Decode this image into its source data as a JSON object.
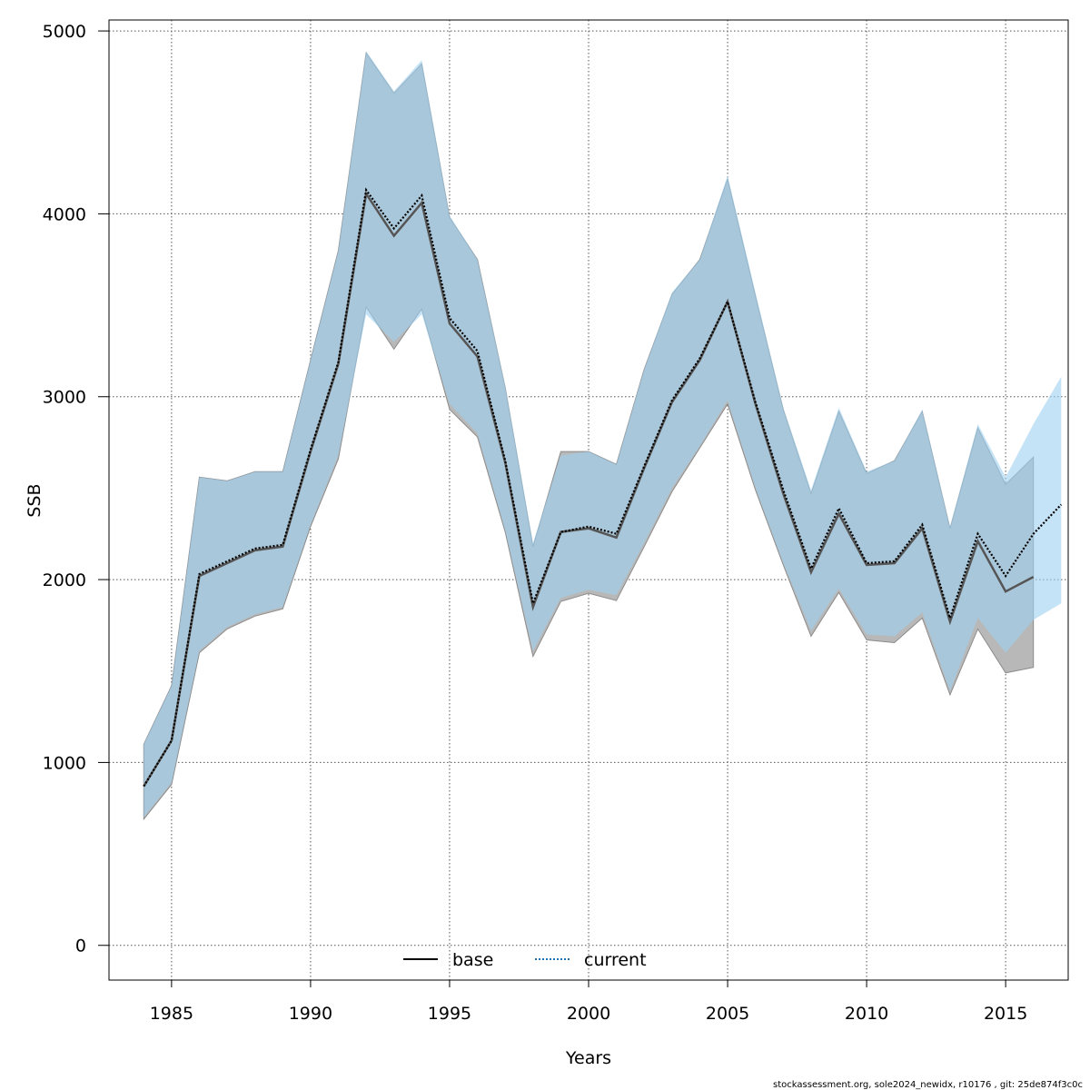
{
  "chart_data": {
    "type": "line",
    "title": "",
    "xlabel": "Years",
    "ylabel": "SSB",
    "xlim": [
      1982.75,
      2017.25
    ],
    "ylim": [
      -190,
      5060
    ],
    "x_ticks": [
      1985,
      1990,
      1995,
      2000,
      2005,
      2010,
      2015
    ],
    "y_ticks": [
      0,
      1000,
      2000,
      3000,
      4000,
      5000
    ],
    "grid": true,
    "legend_position": "bottom-center",
    "colors": {
      "base_band": "#b8b8b8",
      "base_band_edge": "#8c8c8c",
      "current_band": "#9fd0f0",
      "current_band_opacity": 0.6,
      "base_line": "#000000",
      "current_line": "#1f6fa8"
    },
    "series": [
      {
        "name": "base",
        "style": "solid",
        "x": [
          1984,
          1985,
          1986,
          1987,
          1988,
          1989,
          1990,
          1991,
          1992,
          1993,
          1994,
          1995,
          1996,
          1997,
          1998,
          1999,
          2000,
          2001,
          2002,
          2003,
          2004,
          2005,
          2006,
          2007,
          2008,
          2009,
          2010,
          2011,
          2012,
          2013,
          2014,
          2015,
          2016
        ],
        "y": [
          870,
          1120,
          2020,
          2090,
          2160,
          2180,
          2700,
          3180,
          4110,
          3880,
          4060,
          3400,
          3220,
          2640,
          1850,
          2260,
          2280,
          2230,
          2610,
          2970,
          3200,
          3520,
          2960,
          2470,
          2040,
          2360,
          2080,
          2090,
          2280,
          1770,
          2210,
          1935,
          2015
        ],
        "lower": [
          690,
          880,
          1600,
          1730,
          1800,
          1840,
          2290,
          2660,
          3490,
          3260,
          3480,
          2930,
          2780,
          2260,
          1580,
          1880,
          1925,
          1885,
          2180,
          2480,
          2720,
          2960,
          2490,
          2080,
          1690,
          1930,
          1670,
          1655,
          1790,
          1370,
          1730,
          1490,
          1520
        ],
        "upper": [
          1100,
          1420,
          2560,
          2540,
          2590,
          2590,
          3200,
          3800,
          4880,
          4660,
          4820,
          3980,
          3750,
          3050,
          2180,
          2700,
          2700,
          2630,
          3150,
          3560,
          3750,
          4190,
          3550,
          2930,
          2470,
          2920,
          2580,
          2650,
          2920,
          2280,
          2830,
          2520,
          2670
        ]
      },
      {
        "name": "current",
        "style": "dotted",
        "x": [
          1984,
          1985,
          1986,
          1987,
          1988,
          1989,
          1990,
          1991,
          1992,
          1993,
          1994,
          1995,
          1996,
          1997,
          1998,
          1999,
          2000,
          2001,
          2002,
          2003,
          2004,
          2005,
          2006,
          2007,
          2008,
          2009,
          2010,
          2011,
          2012,
          2013,
          2014,
          2015,
          2016,
          2017
        ],
        "y": [
          870,
          1120,
          2030,
          2100,
          2170,
          2190,
          2710,
          3190,
          4130,
          3920,
          4100,
          3430,
          3250,
          2650,
          1870,
          2260,
          2290,
          2250,
          2620,
          2980,
          3210,
          3520,
          2970,
          2490,
          2060,
          2390,
          2090,
          2100,
          2300,
          1790,
          2250,
          2020,
          2250,
          2410
        ],
        "lower": [
          700,
          890,
          1610,
          1740,
          1810,
          1850,
          2300,
          2680,
          3450,
          3300,
          3450,
          2960,
          2800,
          2270,
          1610,
          1900,
          1945,
          1915,
          2200,
          2500,
          2730,
          2980,
          2500,
          2090,
          1720,
          1950,
          1700,
          1690,
          1820,
          1390,
          1790,
          1600,
          1780,
          1870
        ],
        "upper": [
          1100,
          1420,
          2560,
          2540,
          2590,
          2590,
          3200,
          3800,
          4890,
          4670,
          4840,
          3990,
          3750,
          3060,
          2200,
          2680,
          2700,
          2630,
          3150,
          3570,
          3750,
          4210,
          3570,
          2940,
          2490,
          2940,
          2590,
          2650,
          2930,
          2290,
          2850,
          2560,
          2850,
          3110
        ]
      }
    ]
  },
  "footer": "stockassessment.org, sole2024_newidx, r10176 , git: 25de874f3c0c"
}
